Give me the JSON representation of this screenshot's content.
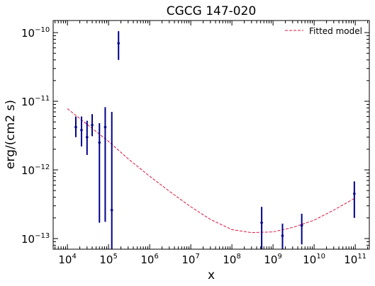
{
  "chart_data": {
    "type": "scatter",
    "title": "CGCG 147-020",
    "xlabel": "x",
    "ylabel": "erg/(cm2 s)",
    "xscale": "log",
    "yscale": "log",
    "xlim": [
      4500,
      220000000000.0
    ],
    "ylim": [
      7e-14,
      1.5e-10
    ],
    "x_tick_labels": [
      {
        "value": 10000.0,
        "base": "10",
        "exp": "4"
      },
      {
        "value": 100000.0,
        "base": "10",
        "exp": "5"
      },
      {
        "value": 1000000.0,
        "base": "10",
        "exp": "6"
      },
      {
        "value": 10000000.0,
        "base": "10",
        "exp": "7"
      },
      {
        "value": 100000000.0,
        "base": "10",
        "exp": "8"
      },
      {
        "value": 1000000000.0,
        "base": "10",
        "exp": "9"
      },
      {
        "value": 10000000000.0,
        "base": "10",
        "exp": "10"
      },
      {
        "value": 100000000000.0,
        "base": "10",
        "exp": "11"
      }
    ],
    "y_tick_labels": [
      {
        "value": 1e-13,
        "base": "10",
        "exp": "−13"
      },
      {
        "value": 1e-12,
        "base": "10",
        "exp": "−12"
      },
      {
        "value": 1e-11,
        "base": "10",
        "exp": "−11"
      },
      {
        "value": 1e-10,
        "base": "10",
        "exp": "−10"
      }
    ],
    "grid": false,
    "legend": {
      "position": "top-right",
      "entries": [
        {
          "label": "Fitted model",
          "style": "dashed",
          "color": "#dc143c"
        }
      ]
    },
    "data_color": "#00008b",
    "fit_color": "#dc143c",
    "points": [
      {
        "x": 16000.0,
        "y": 4.2e-12,
        "ylo": 3e-12,
        "yhi": 6e-12
      },
      {
        "x": 22000.0,
        "y": 3.8e-12,
        "ylo": 2.2e-12,
        "yhi": 6e-12
      },
      {
        "x": 30000.0,
        "y": 3e-12,
        "ylo": 1.65e-12,
        "yhi": 5.2e-12
      },
      {
        "x": 40000.0,
        "y": 4.5e-12,
        "ylo": 3.1e-12,
        "yhi": 6.5e-12
      },
      {
        "x": 60000.0,
        "y": 2.5e-12,
        "ylo": 1.7e-13,
        "yhi": 4.8e-12
      },
      {
        "x": 83000.0,
        "y": 4.2e-12,
        "ylo": 1.75e-13,
        "yhi": 8.2e-12
      },
      {
        "x": 120000.0,
        "y": 2.6e-13,
        "ylo": 6e-14,
        "yhi": 7e-12
      },
      {
        "x": 175000.0,
        "y": 7e-11,
        "ylo": 4e-11,
        "yhi": 1.05e-10
      },
      {
        "x": 530000000.0,
        "y": 1.7e-13,
        "ylo": 6e-14,
        "yhi": 2.9e-13
      },
      {
        "x": 1700000000.0,
        "y": 1.1e-13,
        "ylo": 6e-14,
        "yhi": 1.65e-13
      },
      {
        "x": 5000000000.0,
        "y": 1.55e-13,
        "ylo": 8.2e-14,
        "yhi": 2.3e-13
      },
      {
        "x": 95000000000.0,
        "y": 4.5e-13,
        "ylo": 2e-13,
        "yhi": 6.8e-13
      }
    ],
    "fit_curve": {
      "x": [
        10000.0,
        30000.0,
        100000.0,
        300000.0,
        1000000.0,
        3000000.0,
        10000000.0,
        30000000.0,
        100000000.0,
        300000000.0,
        1000000000.0,
        3000000000.0,
        10000000000.0,
        30000000000.0,
        100000000000.0
      ],
      "y": [
        7.8e-12,
        4.6e-12,
        2.6e-12,
        1.45e-12,
        8.1e-13,
        4.9e-13,
        2.9e-13,
        1.9e-13,
        1.35e-13,
        1.22e-13,
        1.25e-13,
        1.45e-13,
        1.85e-13,
        2.6e-13,
        3.9e-13
      ]
    }
  }
}
